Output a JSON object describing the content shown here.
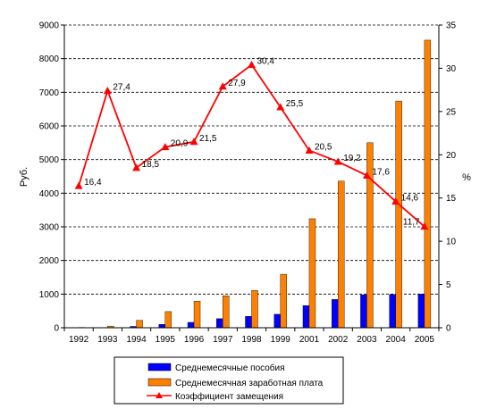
{
  "chart_data": {
    "type": "bar+line",
    "title": "",
    "categories": [
      "1992",
      "1993",
      "1994",
      "1995",
      "1996",
      "1997",
      "1998",
      "1999",
      "2001",
      "2002",
      "2003",
      "2004",
      "2005"
    ],
    "ylabel_left": "Руб.",
    "ylabel_right": "%",
    "ylim_left": [
      0,
      9000
    ],
    "ylim_right": [
      0,
      35
    ],
    "yticks_left": [
      0,
      1000,
      2000,
      3000,
      4000,
      5000,
      6000,
      7000,
      8000,
      9000
    ],
    "yticks_right": [
      0,
      5,
      10,
      15,
      20,
      25,
      30,
      35
    ],
    "grid": "horizontal dashed",
    "legend_position": "bottom",
    "series": [
      {
        "name": "Среднемесячные пособия",
        "kind": "bar",
        "axis": "left",
        "color": "#0000ff",
        "values": [
          2,
          8,
          40,
          100,
          160,
          270,
          340,
          400,
          660,
          840,
          980,
          990,
          1000
        ]
      },
      {
        "name": "Среднемесячная заработная плата",
        "kind": "bar",
        "axis": "left",
        "color": "#ff8000",
        "values": [
          10,
          50,
          220,
          480,
          790,
          950,
          1110,
          1590,
          3240,
          4360,
          5500,
          6740,
          8550
        ]
      },
      {
        "name": "Коэффициент замещения",
        "kind": "line",
        "axis": "right",
        "color": "#ff0000",
        "values": [
          16.4,
          27.4,
          18.5,
          20.9,
          21.5,
          27.9,
          30.4,
          25.5,
          20.5,
          19.2,
          17.6,
          14.6,
          11.7
        ],
        "labels": [
          "16,4",
          "27,4",
          "18,5",
          "20,9",
          "21,5",
          "27,9",
          "30,4",
          "25,5",
          "20,5",
          "19,2",
          "17,6",
          "14,6",
          "11,7"
        ]
      }
    ]
  }
}
